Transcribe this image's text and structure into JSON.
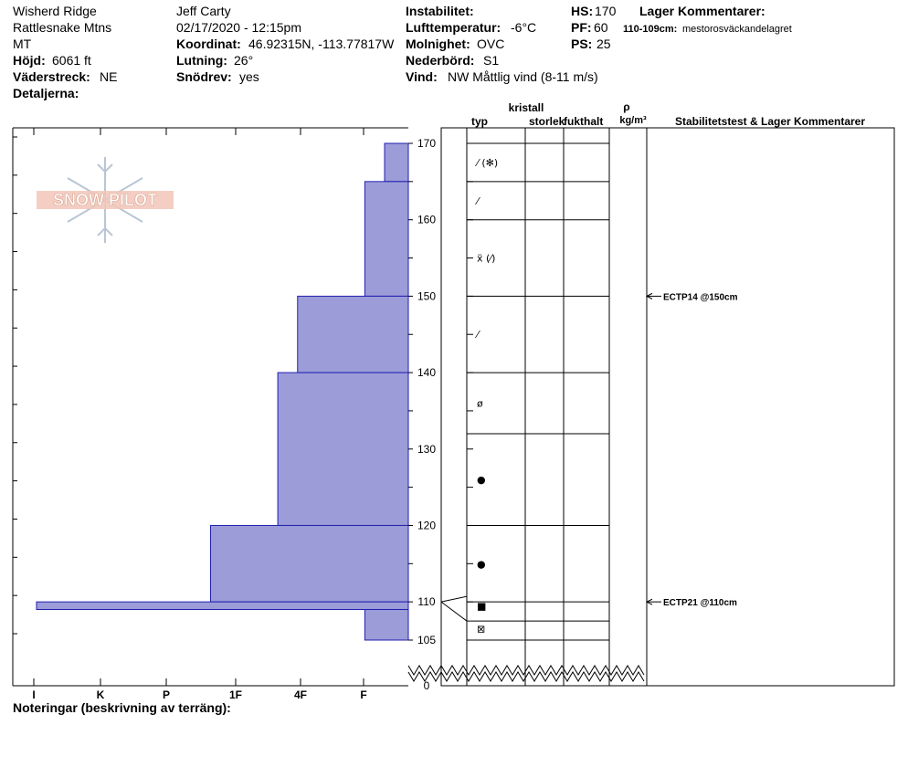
{
  "header": {
    "location": "Wisherd Ridge",
    "range": "Rattlesnake Mtns",
    "state": "MT",
    "elevation_label": "Höjd:",
    "elevation_value": "6061 ft",
    "aspect_label": "Väderstreck:",
    "aspect_value": "NE",
    "details_label": "Detaljerna:",
    "observer": "Jeff Carty",
    "datetime": "02/17/2020 - 12:15pm",
    "coord_label": "Koordinat:",
    "coord_value": "46.92315N, -113.77817W",
    "slope_label": "Lutning:",
    "slope_value": "26°",
    "drift_label": "Snödrev:",
    "drift_value": "yes",
    "instability_label": "Instabilitet:",
    "airtemp_label": "Lufttemperatur:",
    "airtemp_value": "-6°C",
    "cloud_label": "Molnighet:",
    "cloud_value": "OVC",
    "precip_label": "Nederbörd:",
    "precip_value": "S1",
    "wind_label": "Vind:",
    "wind_value": "NW Måttlig vind (8-11 m/s)",
    "hs_label": "HS:",
    "hs_value": "170",
    "pf_label": "PF:",
    "pf_value": "60",
    "ps_label": "PS:",
    "ps_value": "25",
    "layer_comments_label": "Lager Kommentarer:",
    "layer_comment_depth": "110-109cm:",
    "layer_comment_text": "mestorosväckandelagret"
  },
  "logo_text": "SNOW PILOT",
  "columns": {
    "crystal": "kristall",
    "type": "typ",
    "size": "storlek",
    "moisture": "fukthalt",
    "rho": "ρ",
    "density_unit": "kg/m³",
    "stability": "Stabilitetstest & Lager Kommentarer"
  },
  "footer": {
    "notes_label": "Noteringar (beskrivning av terräng):"
  },
  "colors": {
    "layer_fill": "#9c9cd8",
    "layer_stroke": "#2020b0"
  },
  "chart_data": {
    "type": "snow-profile",
    "hardness_axis": [
      "I",
      "K",
      "P",
      "1F",
      "4F",
      "F"
    ],
    "depth_ticks": [
      170,
      160,
      150,
      140,
      130,
      120,
      110,
      105,
      0
    ],
    "hardness_layers": [
      {
        "top": 170,
        "bottom": 165,
        "hardness_level": 0.06
      },
      {
        "top": 165,
        "bottom": 150,
        "hardness_level": 0.11
      },
      {
        "top": 150,
        "bottom": 140,
        "hardness_level": 0.28
      },
      {
        "top": 140,
        "bottom": 120,
        "hardness_level": 0.33
      },
      {
        "top": 120,
        "bottom": 110,
        "hardness_level": 0.5
      },
      {
        "top": 110,
        "bottom": 109,
        "hardness_level": 0.94
      },
      {
        "top": 109,
        "bottom": 105,
        "hardness_level": 0.11
      }
    ],
    "layer_boundaries": [
      170,
      165,
      160,
      150,
      140,
      132,
      120,
      110,
      107.5,
      105
    ],
    "grain_types": [
      {
        "depth": 167.5,
        "symbol": "⁄ (✻)"
      },
      {
        "depth": 162.5,
        "symbol": "⁄"
      },
      {
        "depth": 155,
        "symbol": "ẍ (⁄)"
      },
      {
        "depth": 145,
        "symbol": "⁄"
      },
      {
        "depth": 136,
        "symbol": "ø"
      },
      {
        "depth": 126,
        "symbol": "●"
      },
      {
        "depth": 115,
        "symbol": "●"
      },
      {
        "depth": 109.5,
        "symbol": "■"
      },
      {
        "depth": 106.5,
        "symbol": "⊠"
      }
    ],
    "stability_tests": [
      {
        "depth": 150,
        "label": "ECTP14 @150cm"
      },
      {
        "depth": 110,
        "label": "ECTP21 @110cm"
      }
    ]
  }
}
